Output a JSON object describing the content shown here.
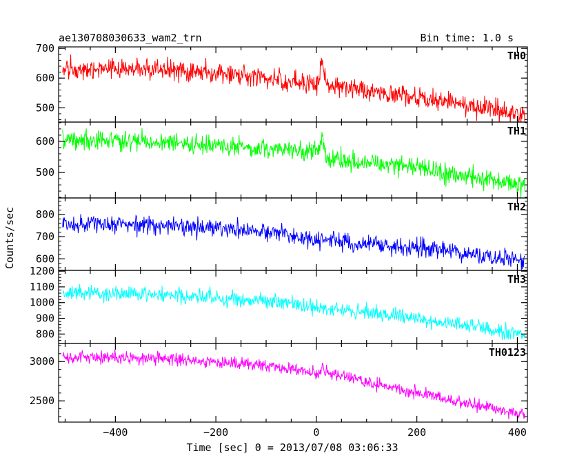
{
  "chart_data": {
    "type": "line",
    "title": "ae130708030633_wam2_trn",
    "bin_time": "Bin time: 1.0 s",
    "xlabel": "Time [sec] 0 = 2013/07/08 03:06:33",
    "ylabel": "Counts/sec",
    "xlim": [
      -513,
      420
    ],
    "xticks": [
      -400,
      -200,
      0,
      200,
      400
    ],
    "xtick_labels": [
      "−400",
      "−200",
      "0",
      "200",
      "400"
    ],
    "grid": false,
    "panels": [
      {
        "name": "TH0",
        "color": "#ff0000",
        "ylim": [
          452,
          705
        ],
        "yticks": [
          500,
          600,
          700
        ],
        "trend": [
          [
            -505,
            628
          ],
          [
            -300,
            630
          ],
          [
            -100,
            600
          ],
          [
            5,
            580
          ],
          [
            10,
            665
          ],
          [
            20,
            575
          ],
          [
            200,
            535
          ],
          [
            415,
            478
          ]
        ],
        "noise": 24
      },
      {
        "name": "TH1",
        "color": "#00ff00",
        "ylim": [
          418,
          662
        ],
        "yticks": [
          500,
          600
        ],
        "trend": [
          [
            -505,
            607
          ],
          [
            -300,
            595
          ],
          [
            -100,
            580
          ],
          [
            5,
            565
          ],
          [
            10,
            620
          ],
          [
            20,
            545
          ],
          [
            200,
            515
          ],
          [
            415,
            460
          ]
        ],
        "noise": 22
      },
      {
        "name": "TH2",
        "color": "#0000ff",
        "ylim": [
          548,
          875
        ],
        "yticks": [
          600,
          700,
          800
        ],
        "trend": [
          [
            -505,
            760
          ],
          [
            -300,
            752
          ],
          [
            -100,
            722
          ],
          [
            20,
            685
          ],
          [
            200,
            648
          ],
          [
            415,
            590
          ]
        ],
        "noise": 28
      },
      {
        "name": "TH3",
        "color": "#00ffff",
        "ylim": [
          740,
          1205
        ],
        "yticks": [
          800,
          900,
          1000,
          1100,
          1200
        ],
        "trend": [
          [
            -505,
            1068
          ],
          [
            -300,
            1052
          ],
          [
            -100,
            1012
          ],
          [
            20,
            960
          ],
          [
            200,
            900
          ],
          [
            415,
            800
          ]
        ],
        "noise": 35
      },
      {
        "name": "TH0123",
        "color": "#ff00ff",
        "ylim": [
          2230,
          3230
        ],
        "yticks": [
          2500,
          3000
        ],
        "trend": [
          [
            -505,
            3060
          ],
          [
            -300,
            3040
          ],
          [
            -100,
            2955
          ],
          [
            5,
            2850
          ],
          [
            10,
            2920
          ],
          [
            20,
            2860
          ],
          [
            200,
            2600
          ],
          [
            415,
            2320
          ]
        ],
        "noise": 55
      }
    ]
  }
}
